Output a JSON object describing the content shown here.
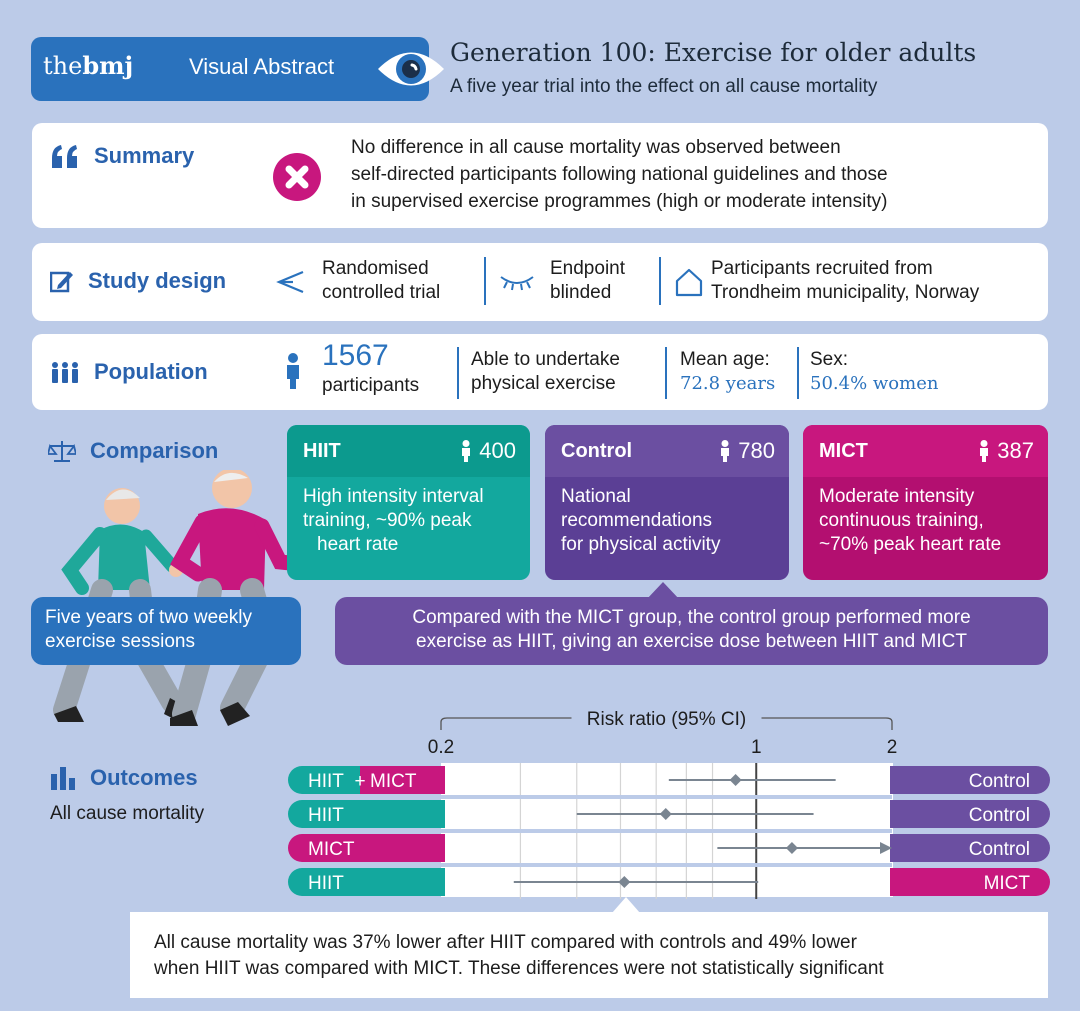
{
  "header": {
    "logo_the": "the",
    "logo_bmj": "bmj",
    "logo_suffix": "Visual Abstract",
    "title": "Generation 100: Exercise for older adults",
    "subtitle": "A five year trial into the effect on all cause mortality"
  },
  "summary": {
    "label": "Summary",
    "lines": [
      "No difference in all cause mortality was observed between",
      "self-directed participants following national guidelines and those",
      "in supervised exercise programmes (high or moderate intensity)"
    ]
  },
  "study_design": {
    "label": "Study design",
    "items": [
      {
        "l1": "Randomised",
        "l2": "controlled trial"
      },
      {
        "l1": "Endpoint",
        "l2": "blinded"
      },
      {
        "l1": "Participants recruited from",
        "l2": "Trondheim municipality, Norway"
      }
    ]
  },
  "population": {
    "label": "Population",
    "count": "1567",
    "count_label": "participants",
    "ability_l1": "Able to undertake",
    "ability_l2": "physical exercise",
    "age_label": "Mean age:",
    "age_value": "72.8 years",
    "sex_label": "Sex:",
    "sex_value": "50.4% women"
  },
  "comparison": {
    "label": "Comparison",
    "groups": [
      {
        "name": "HIIT",
        "count": "400",
        "l1": "High intensity interval",
        "l2": "training, ~90% peak",
        "l3": "heart rate"
      },
      {
        "name": "Control",
        "count": "780",
        "l1": "National",
        "l2": "recommendations",
        "l3": "for physical activity"
      },
      {
        "name": "MICT",
        "count": "387",
        "l1": "Moderate intensity",
        "l2": "continuous training,",
        "l3": "~70% peak heart rate"
      }
    ],
    "sessions_l1": "Five years of two weekly",
    "sessions_l2": "exercise sessions",
    "dose_l1": "Compared with the MICT group, the control group performed more",
    "dose_l2": "exercise as HIIT, giving an exercise dose between HIIT and MICT"
  },
  "outcomes": {
    "label": "Outcomes",
    "sublabel": "All cause mortality",
    "conclusion_l1": "All cause mortality was 37% lower after HIIT compared with controls and 49% lower",
    "conclusion_l2": "when HIIT was compared with MICT. These differences were not statistically significant"
  },
  "colors": {
    "hiit": "#13a89e",
    "control": "#6b4fa1",
    "mict": "#c8177e",
    "blue": "#2a72bd",
    "background": "#bccbe8"
  },
  "chart_data": {
    "type": "forest",
    "title": "Risk ratio (95% CI)",
    "scale": "log",
    "xlim": [
      0.2,
      2
    ],
    "ticks": [
      0.2,
      1,
      2
    ],
    "reference_line": 1,
    "rows": [
      {
        "left": [
          "HIIT",
          "MICT"
        ],
        "left_joiner": "+",
        "right": "Control",
        "estimate": 0.9,
        "ci": [
          0.64,
          1.5
        ]
      },
      {
        "left": [
          "HIIT"
        ],
        "right": "Control",
        "estimate": 0.63,
        "ci": [
          0.4,
          1.34
        ]
      },
      {
        "left": [
          "MICT"
        ],
        "right": "Control",
        "estimate": 1.2,
        "ci": [
          0.82,
          2.0
        ],
        "ci_upper_arrow": true
      },
      {
        "left": [
          "HIIT"
        ],
        "right": "MICT",
        "estimate": 0.51,
        "ci": [
          0.29,
          1.01
        ]
      }
    ]
  }
}
